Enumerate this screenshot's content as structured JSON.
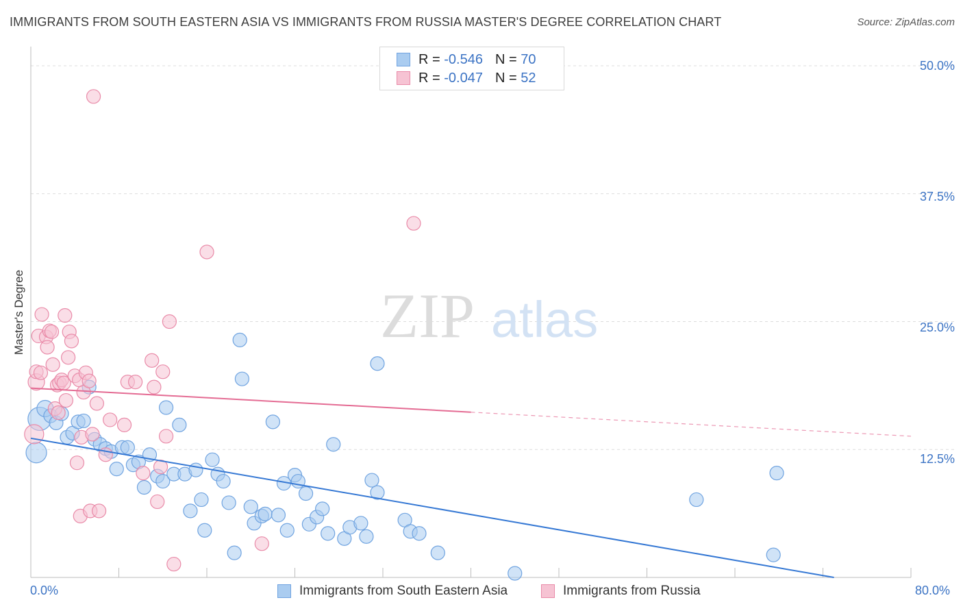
{
  "chart_data": {
    "type": "scatter",
    "title": "IMMIGRANTS FROM SOUTH EASTERN ASIA VS IMMIGRANTS FROM RUSSIA MASTER'S DEGREE CORRELATION CHART",
    "source": "Source: ZipAtlas.com",
    "xlabel": "",
    "ylabel": "Master's Degree",
    "xlim": [
      0,
      80
    ],
    "ylim": [
      0,
      50
    ],
    "x_tick_labels": [
      "0.0%",
      "80.0%"
    ],
    "y_ticks": [
      12.5,
      25.0,
      37.5,
      50.0
    ],
    "y_tick_labels": [
      "12.5%",
      "25.0%",
      "37.5%",
      "50.0%"
    ],
    "grid": true,
    "watermark": "ZIPatlas",
    "legend_stats": [
      {
        "r_label": "R = ",
        "r_value": "-0.546",
        "n_label": "N = ",
        "n_value": "70"
      },
      {
        "r_label": "R = ",
        "r_value": "-0.047",
        "n_label": "N = ",
        "n_value": "52"
      }
    ],
    "series": [
      {
        "name": "Immigrants from South Eastern Asia",
        "color": "#6fa3e0",
        "fill": "#aaccf0",
        "line_color": "#3578d4",
        "trend": {
          "x0": 0,
          "y0": 13.6,
          "x1": 73,
          "y1": 0,
          "solid_to": 73
        },
        "points": [
          [
            0.5,
            12.2
          ],
          [
            0.8,
            15.5
          ],
          [
            1.3,
            16.5
          ],
          [
            1.8,
            15.8
          ],
          [
            2.3,
            15.1
          ],
          [
            2.8,
            16.0
          ],
          [
            3.3,
            13.7
          ],
          [
            3.8,
            14.1
          ],
          [
            4.3,
            15.2
          ],
          [
            4.8,
            15.3
          ],
          [
            5.3,
            18.6
          ],
          [
            5.8,
            13.5
          ],
          [
            6.3,
            13.0
          ],
          [
            6.8,
            12.6
          ],
          [
            7.3,
            12.3
          ],
          [
            7.8,
            10.6
          ],
          [
            8.3,
            12.7
          ],
          [
            8.8,
            12.7
          ],
          [
            9.3,
            11.0
          ],
          [
            9.8,
            11.3
          ],
          [
            10.3,
            8.8
          ],
          [
            10.8,
            12.0
          ],
          [
            11.5,
            9.9
          ],
          [
            12.0,
            9.4
          ],
          [
            12.3,
            16.6
          ],
          [
            13.0,
            10.1
          ],
          [
            13.5,
            14.9
          ],
          [
            14.0,
            10.1
          ],
          [
            14.5,
            6.5
          ],
          [
            15.0,
            10.5
          ],
          [
            15.5,
            7.6
          ],
          [
            15.8,
            4.6
          ],
          [
            16.5,
            11.5
          ],
          [
            17.0,
            10.1
          ],
          [
            17.5,
            9.4
          ],
          [
            18.0,
            7.3
          ],
          [
            18.5,
            2.4
          ],
          [
            19.0,
            23.2
          ],
          [
            19.2,
            19.4
          ],
          [
            20.0,
            6.9
          ],
          [
            20.3,
            5.3
          ],
          [
            21.0,
            6.0
          ],
          [
            21.3,
            6.2
          ],
          [
            22.0,
            15.2
          ],
          [
            22.5,
            6.1
          ],
          [
            23.0,
            9.2
          ],
          [
            23.3,
            4.6
          ],
          [
            24.0,
            10.0
          ],
          [
            24.3,
            9.4
          ],
          [
            25.0,
            8.2
          ],
          [
            25.3,
            5.2
          ],
          [
            26.0,
            5.9
          ],
          [
            26.5,
            6.7
          ],
          [
            27.0,
            4.3
          ],
          [
            27.5,
            13.0
          ],
          [
            28.5,
            3.8
          ],
          [
            29.0,
            4.9
          ],
          [
            30.0,
            5.3
          ],
          [
            30.5,
            4.0
          ],
          [
            31.0,
            9.5
          ],
          [
            31.5,
            8.3
          ],
          [
            31.5,
            20.9
          ],
          [
            34.0,
            5.6
          ],
          [
            34.5,
            4.5
          ],
          [
            35.3,
            4.3
          ],
          [
            37.0,
            2.4
          ],
          [
            44.0,
            0.4
          ],
          [
            60.5,
            7.6
          ],
          [
            67.5,
            2.2
          ],
          [
            67.8,
            10.2
          ]
        ],
        "sizes": [
          15,
          17,
          12,
          10,
          10,
          10,
          10,
          10,
          10,
          10,
          10,
          10,
          10,
          10,
          10,
          10,
          10,
          10,
          10,
          10,
          10,
          10,
          10,
          10,
          10,
          10,
          10,
          10,
          10,
          10,
          10,
          10,
          10,
          10,
          10,
          10,
          10,
          10,
          10,
          10,
          10,
          10,
          10,
          10,
          10,
          10,
          10,
          10,
          10,
          10,
          10,
          10,
          10,
          10,
          10,
          10,
          10,
          10,
          10,
          10,
          10,
          10,
          10,
          10,
          10,
          10,
          10,
          10,
          10,
          10
        ]
      },
      {
        "name": "Immigrants from Russia",
        "color": "#e98aa8",
        "fill": "#f6c3d3",
        "line_color": "#e46b93",
        "trend": {
          "x0": 0,
          "y0": 18.5,
          "x1": 80,
          "y1": 13.8,
          "solid_to": 40
        },
        "points": [
          [
            0.3,
            14.0
          ],
          [
            0.5,
            19.1
          ],
          [
            0.5,
            20.1
          ],
          [
            0.7,
            23.6
          ],
          [
            0.9,
            20.0
          ],
          [
            1.0,
            25.7
          ],
          [
            1.4,
            23.5
          ],
          [
            1.5,
            22.5
          ],
          [
            1.7,
            24.1
          ],
          [
            1.9,
            24.0
          ],
          [
            2.0,
            20.8
          ],
          [
            2.2,
            16.5
          ],
          [
            2.4,
            18.8
          ],
          [
            2.5,
            16.1
          ],
          [
            2.6,
            19.0
          ],
          [
            2.8,
            19.3
          ],
          [
            3.0,
            19.0
          ],
          [
            3.1,
            25.6
          ],
          [
            3.2,
            17.3
          ],
          [
            3.4,
            21.5
          ],
          [
            3.5,
            24.0
          ],
          [
            3.7,
            23.1
          ],
          [
            4.0,
            19.7
          ],
          [
            4.2,
            11.2
          ],
          [
            4.4,
            19.3
          ],
          [
            4.5,
            6.0
          ],
          [
            4.6,
            13.7
          ],
          [
            4.8,
            18.1
          ],
          [
            5.0,
            20.0
          ],
          [
            5.3,
            19.2
          ],
          [
            5.4,
            6.5
          ],
          [
            5.6,
            14.0
          ],
          [
            5.7,
            47.0
          ],
          [
            6.0,
            17.0
          ],
          [
            6.2,
            6.5
          ],
          [
            6.8,
            12.0
          ],
          [
            7.2,
            15.4
          ],
          [
            8.5,
            14.9
          ],
          [
            8.8,
            19.1
          ],
          [
            9.5,
            19.1
          ],
          [
            10.2,
            10.2
          ],
          [
            11.0,
            21.2
          ],
          [
            11.2,
            18.6
          ],
          [
            11.5,
            7.4
          ],
          [
            11.8,
            10.8
          ],
          [
            12.0,
            20.1
          ],
          [
            12.3,
            13.8
          ],
          [
            12.6,
            25.0
          ],
          [
            13.0,
            1.3
          ],
          [
            16.0,
            31.8
          ],
          [
            21.0,
            3.3
          ],
          [
            34.8,
            34.6
          ]
        ],
        "sizes": [
          14,
          12,
          10,
          10,
          10,
          10,
          10,
          10,
          10,
          10,
          10,
          10,
          10,
          10,
          10,
          10,
          10,
          10,
          10,
          10,
          10,
          10,
          10,
          10,
          10,
          10,
          10,
          10,
          10,
          10,
          10,
          10,
          10,
          10,
          10,
          10,
          10,
          10,
          10,
          10,
          10,
          10,
          10,
          10,
          10,
          10,
          10,
          10,
          10,
          10,
          10,
          10
        ]
      }
    ]
  }
}
